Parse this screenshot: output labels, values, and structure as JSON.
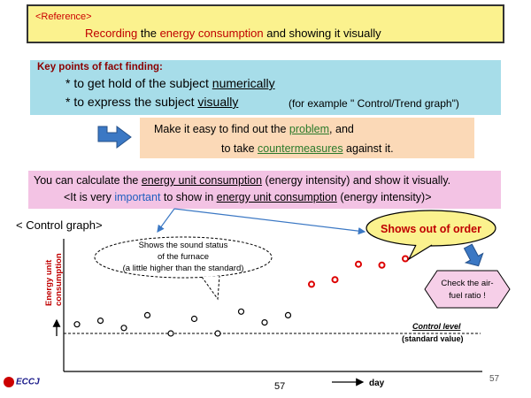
{
  "reference": {
    "tag": "<Reference>",
    "title_a": "Recording",
    "title_b": " the ",
    "title_c": "energy consumption",
    "title_d": " and showing it visually"
  },
  "key_points": {
    "title": "Key points of fact finding:",
    "b1_a": "* to get hold of the subject ",
    "b1_b": "numerically",
    "b2_a": "* to express the subject ",
    "b2_b": "visually",
    "b2_c": "(for example \" Control/Trend graph\")"
  },
  "problem": {
    "l1_a": "Make it easy to find out the ",
    "l1_b": "problem",
    "l1_c": ", and",
    "l2_a": "to take ",
    "l2_b": "countermeasures",
    "l2_c": " against it."
  },
  "calc": {
    "l1_a": "You can calculate the ",
    "l1_b": "energy unit consumption",
    "l1_c": " (energy intensity) and show it visually.",
    "l2_a": "<It is very ",
    "l2_b": "important",
    "l2_c": " to show in ",
    "l2_d": "energy unit consumption",
    "l2_e": " (energy intensity)>"
  },
  "chart_title": "< Control graph>",
  "chart_data": {
    "type": "scatter",
    "ylabel": "Energy unit consumption",
    "xlabel": "day",
    "control_level_label": "Control level",
    "standard_label": "(standard value)",
    "normal_points": [
      {
        "x": 1,
        "y": 1.0
      },
      {
        "x": 2,
        "y": 1.4
      },
      {
        "x": 3,
        "y": 0.6
      },
      {
        "x": 4,
        "y": 2.0
      },
      {
        "x": 5,
        "y": 0.0
      },
      {
        "x": 6,
        "y": 1.6
      },
      {
        "x": 7,
        "y": 0.0
      },
      {
        "x": 8,
        "y": 2.4
      },
      {
        "x": 9,
        "y": 1.2
      },
      {
        "x": 10,
        "y": 2.0
      }
    ],
    "abnormal_points": [
      {
        "x": 11,
        "y": 5.4
      },
      {
        "x": 12,
        "y": 5.9
      },
      {
        "x": 13,
        "y": 7.6
      },
      {
        "x": 14,
        "y": 7.5
      },
      {
        "x": 15,
        "y": 8.2
      }
    ],
    "colors": {
      "normal": "#000000",
      "abnormal": "#dd0000"
    }
  },
  "callouts": {
    "sound_l1": "Shows the sound status",
    "sound_l2": "of the furnace",
    "sound_l3": "(a little higher than the standard)",
    "out_of_order": "Shows out of order",
    "check_l1": "Check the air-",
    "check_l2": "fuel ratio !"
  },
  "footer": {
    "logo": "ECCJ",
    "page": "57",
    "page_right": "57"
  }
}
